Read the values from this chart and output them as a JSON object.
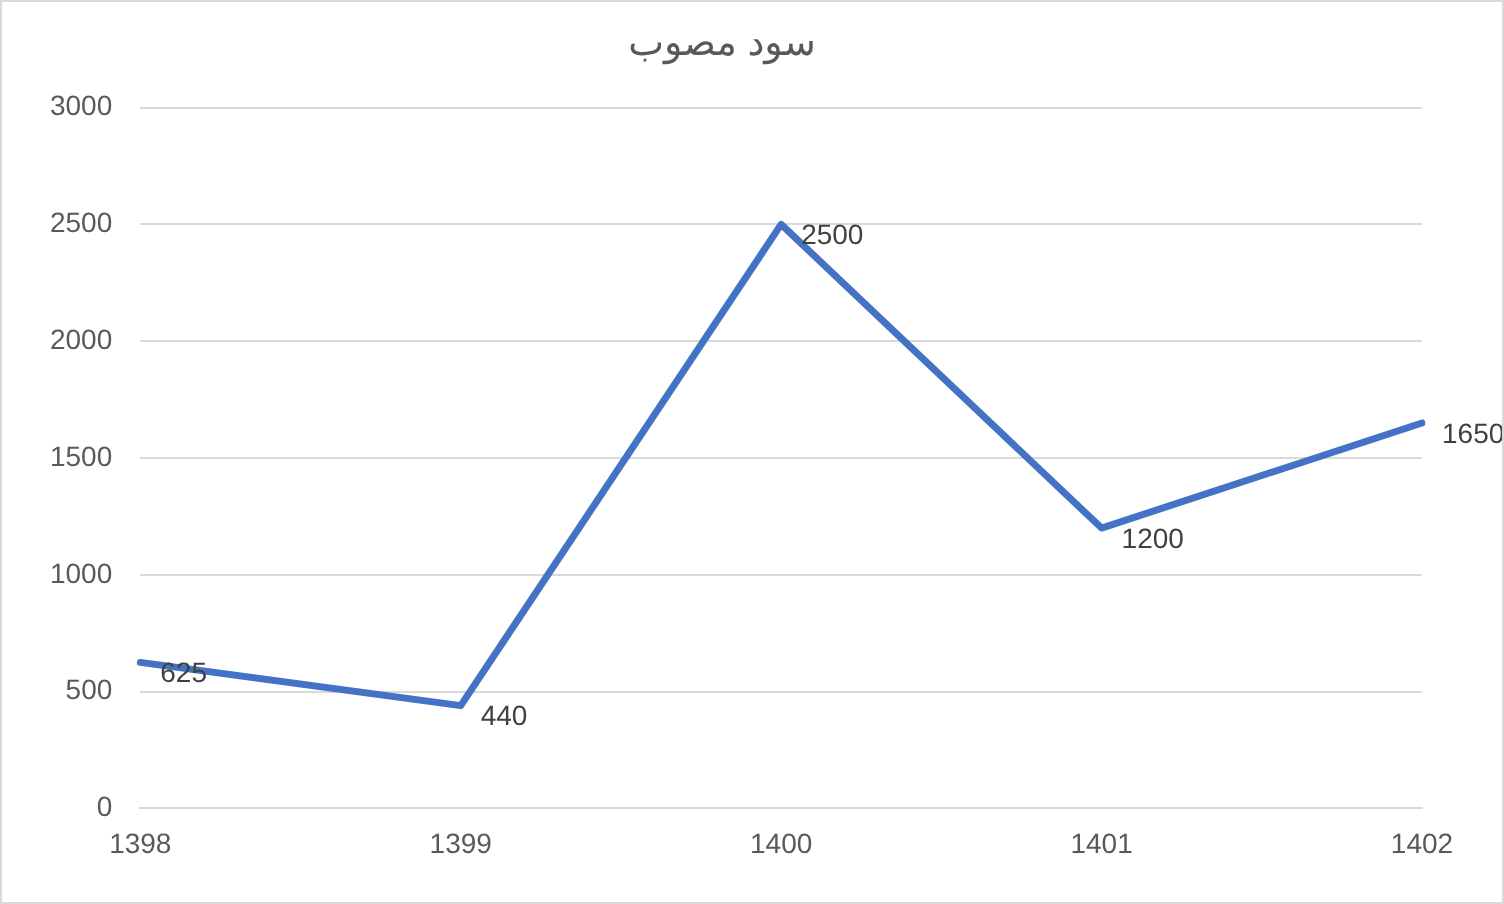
{
  "chart_data": {
    "type": "line",
    "title": "سود مصوب",
    "categories": [
      "1398",
      "1399",
      "1400",
      "1401",
      "1402"
    ],
    "series": [
      {
        "color": "#4472c4",
        "values": [
          625,
          440,
          2500,
          1200,
          1650
        ]
      }
    ],
    "ylim": [
      0,
      3000
    ],
    "yticks": [
      0,
      500,
      1000,
      1500,
      2000,
      2500,
      3000
    ],
    "grid": "y",
    "legend": false,
    "marker": "none",
    "data_labels": true
  }
}
